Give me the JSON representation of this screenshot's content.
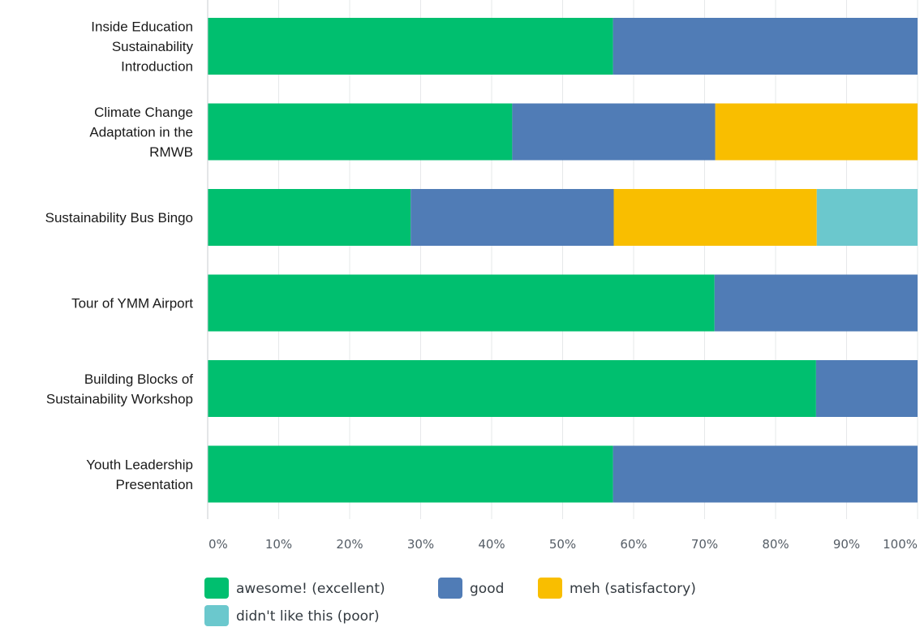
{
  "chart_data": {
    "type": "bar",
    "orientation": "horizontal",
    "stacked": true,
    "categories": [
      [
        "Inside Education",
        "Sustainability",
        "Introduction"
      ],
      [
        "Climate Change",
        "Adaptation in the",
        "RMWB"
      ],
      [
        "Sustainability Bus Bingo"
      ],
      [
        "Tour of YMM Airport"
      ],
      [
        "Building Blocks of",
        "Sustainability Workshop"
      ],
      [
        "Youth Leadership",
        "Presentation"
      ]
    ],
    "series": [
      {
        "name": "awesome! (excellent)",
        "color": "#00bf6f",
        "values": [
          57.1,
          42.9,
          28.6,
          71.4,
          85.7,
          57.1
        ]
      },
      {
        "name": "good",
        "color": "#507cb6",
        "values": [
          42.9,
          28.6,
          28.6,
          28.6,
          14.3,
          42.9
        ]
      },
      {
        "name": "meh (satisfactory)",
        "color": "#f9be00",
        "values": [
          0,
          28.5,
          28.6,
          0,
          0,
          0
        ]
      },
      {
        "name": "didn't like this (poor)",
        "color": "#6bc8cd",
        "values": [
          0,
          0,
          14.2,
          0,
          0,
          0
        ]
      }
    ],
    "xticks": [
      "0%",
      "10%",
      "20%",
      "30%",
      "40%",
      "50%",
      "60%",
      "70%",
      "80%",
      "90%",
      "100%"
    ],
    "xlim": [
      0,
      100
    ],
    "grid": true,
    "legend_position": "bottom-left"
  }
}
